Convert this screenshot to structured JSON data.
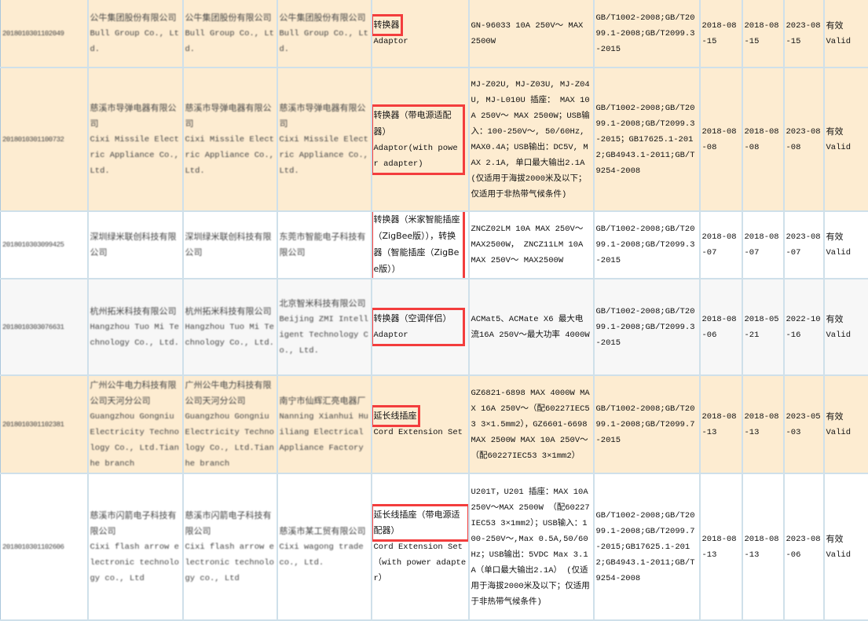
{
  "colors": {
    "row_beige": "#fdecd1",
    "row_white": "#ffffff",
    "row_gray": "#f7f7f7",
    "highlight_box": "#f33d3d",
    "grid": "#cfe0ea"
  },
  "rows": [
    {
      "bg": "beige",
      "id": "2018010301102049",
      "applicant": [
        "公牛集团股份有限公司",
        "Bull Group Co., Ltd."
      ],
      "manufacturer": [
        "公牛集团股份有限公司",
        "Bull Group Co., Ltd."
      ],
      "factory": [
        "公牛集团股份有限公司",
        "Bull Group Co., Ltd."
      ],
      "product_cn": "转换器",
      "product_en": "Adaptor",
      "box": "cn",
      "model": "GN-96033 10A 250V～ MAX 2500W",
      "standard": "GB/T1002-2008;GB/T2099.1-2008;GB/T2099.3-2015",
      "issue_date": "2018-08-15",
      "change_date": "2018-08-15",
      "expiry_date": "2023-08-15",
      "status_cn": "有效",
      "status_en": "Valid"
    },
    {
      "bg": "beige",
      "id": "2018010301100732",
      "applicant": [
        "慈溪市导弹电器有限公司",
        "Cixi Missile Electric Appliance Co., Ltd."
      ],
      "manufacturer": [
        "慈溪市导弹电器有限公司",
        "Cixi Missile Electric Appliance Co., Ltd."
      ],
      "factory": [
        "慈溪市导弹电器有限公司",
        "Cixi Missile Electric Appliance Co., Ltd."
      ],
      "product_cn": "转换器（带电源适配器）",
      "product_en": "Adaptor(with power adapter)",
      "box": "all",
      "model": "MJ-Z02U, MJ-Z03U, MJ-Z04U, MJ-L010U 插座： MAX 10A 250V～ MAX 2500W；USB输入：100-250V～, 50/60Hz, MAX0.4A；USB输出：DC5V, MAX 2.1A, 单口最大输出2.1A (仅适用于海拔2000米及以下；仅适用于非热带气候条件)",
      "standard": "GB/T1002-2008;GB/T2099.1-2008;GB/T2099.3-2015；GB17625.1-2012;GB4943.1-2011;GB/T9254-2008",
      "issue_date": "2018-08-08",
      "change_date": "2018-08-08",
      "expiry_date": "2023-08-08",
      "status_cn": "有效",
      "status_en": "Valid"
    },
    {
      "bg": "white",
      "id": "2018010303099425",
      "applicant": [
        "深圳绿米联创科技有限公司"
      ],
      "manufacturer": [
        "深圳绿米联创科技有限公司"
      ],
      "factory": [
        "东莞市智能电子科技有限公司"
      ],
      "product_cn": "转换器（米家智能插座（ZigBee版）），转换器（智能插座（ZigBee版））",
      "product_en": "",
      "box": "all",
      "model": "ZNCZ02LM 10A MAX 250V～ MAX2500W， ZNCZ11LM 10A MAX 250V～ MAX2500W",
      "standard": "GB/T1002-2008;GB/T2099.1-2008;GB/T2099.3-2015",
      "issue_date": "2018-08-07",
      "change_date": "2018-08-07",
      "expiry_date": "2023-08-07",
      "status_cn": "有效",
      "status_en": "Valid"
    },
    {
      "bg": "gray",
      "id": "2018010303076631",
      "applicant": [
        "杭州拓米科技有限公司",
        "Hangzhou Tuo Mi Technology Co., Ltd."
      ],
      "manufacturer": [
        "杭州拓米科技有限公司",
        "Hangzhou Tuo Mi Technology Co., Ltd."
      ],
      "factory": [
        "北京智米科技有限公司",
        "Beijing ZMI Intelligent Technology Co., Ltd."
      ],
      "product_cn": "转换器（空调伴侣）",
      "product_en": "Adaptor",
      "box": "all",
      "model": "ACMat5、ACMate X6 最大电流16A 250V～最大功率 4000W",
      "standard": "GB/T1002-2008;GB/T2099.1-2008;GB/T2099.3-2015",
      "issue_date": "2018-08-06",
      "change_date": "2018-05-21",
      "expiry_date": "2022-10-16",
      "status_cn": "有效",
      "status_en": "Valid"
    },
    {
      "bg": "beige",
      "id": "2018010301102381",
      "applicant": [
        "广州公牛电力科技有限公司天河分公司",
        "Guangzhou Gongniu Electricity Technology Co., Ltd.Tianhe branch"
      ],
      "manufacturer": [
        "广州公牛电力科技有限公司天河分公司",
        "Guangzhou Gongniu Electricity Technology Co., Ltd.Tianhe branch"
      ],
      "factory": [
        "南宁市仙辉汇亮电器厂",
        "Nanning Xianhui Huiliang Electrical Appliance Factory"
      ],
      "product_cn": "延长线插座",
      "product_en": "Cord Extension Set",
      "box": "cn",
      "model": "GZ6821-6898 MAX 4000W MAX 16A 250V～（配60227IEC53 3×1.5mm2），GZ6601-6698 MAX 2500W MAX 10A 250V～（配60227IEC53 3×1mm2）",
      "standard": "GB/T1002-2008;GB/T2099.1-2008;GB/T2099.7-2015",
      "issue_date": "2018-08-13",
      "change_date": "2018-08-13",
      "expiry_date": "2023-05-03",
      "status_cn": "有效",
      "status_en": "Valid"
    },
    {
      "bg": "white",
      "id": "2018010301102606",
      "applicant": [
        "慈溪市闪箭电子科技有限公司",
        "Cixi flash arrow electronic technology co., Ltd"
      ],
      "manufacturer": [
        "慈溪市闪箭电子科技有限公司",
        "Cixi flash arrow electronic technology co., Ltd"
      ],
      "factory": [
        "慈溪市某工贸有限公司",
        "Cixi wagong trade co., Ltd."
      ],
      "product_cn": "延长线插座（带电源适配器）",
      "product_en": "Cord Extension Set（with power adapter）",
      "box": "cn",
      "model": "U201T，U201 插座：MAX 10A 250V～MAX 2500W （配60227IEC53 3×1mm2）；USB输入：100-250V～,Max 0.5A,50/60Hz；USB输出：5VDC Max 3.1A（单口最大输出2.1A） (仅适用于海拔2000米及以下；仅适用于非热带气候条件)",
      "standard": "GB/T1002-2008;GB/T2099.1-2008;GB/T2099.7-2015;GB17625.1-2012;GB4943.1-2011;GB/T9254-2008",
      "issue_date": "2018-08-13",
      "change_date": "2018-08-13",
      "expiry_date": "2023-08-06",
      "status_cn": "有效",
      "status_en": "Valid"
    }
  ]
}
